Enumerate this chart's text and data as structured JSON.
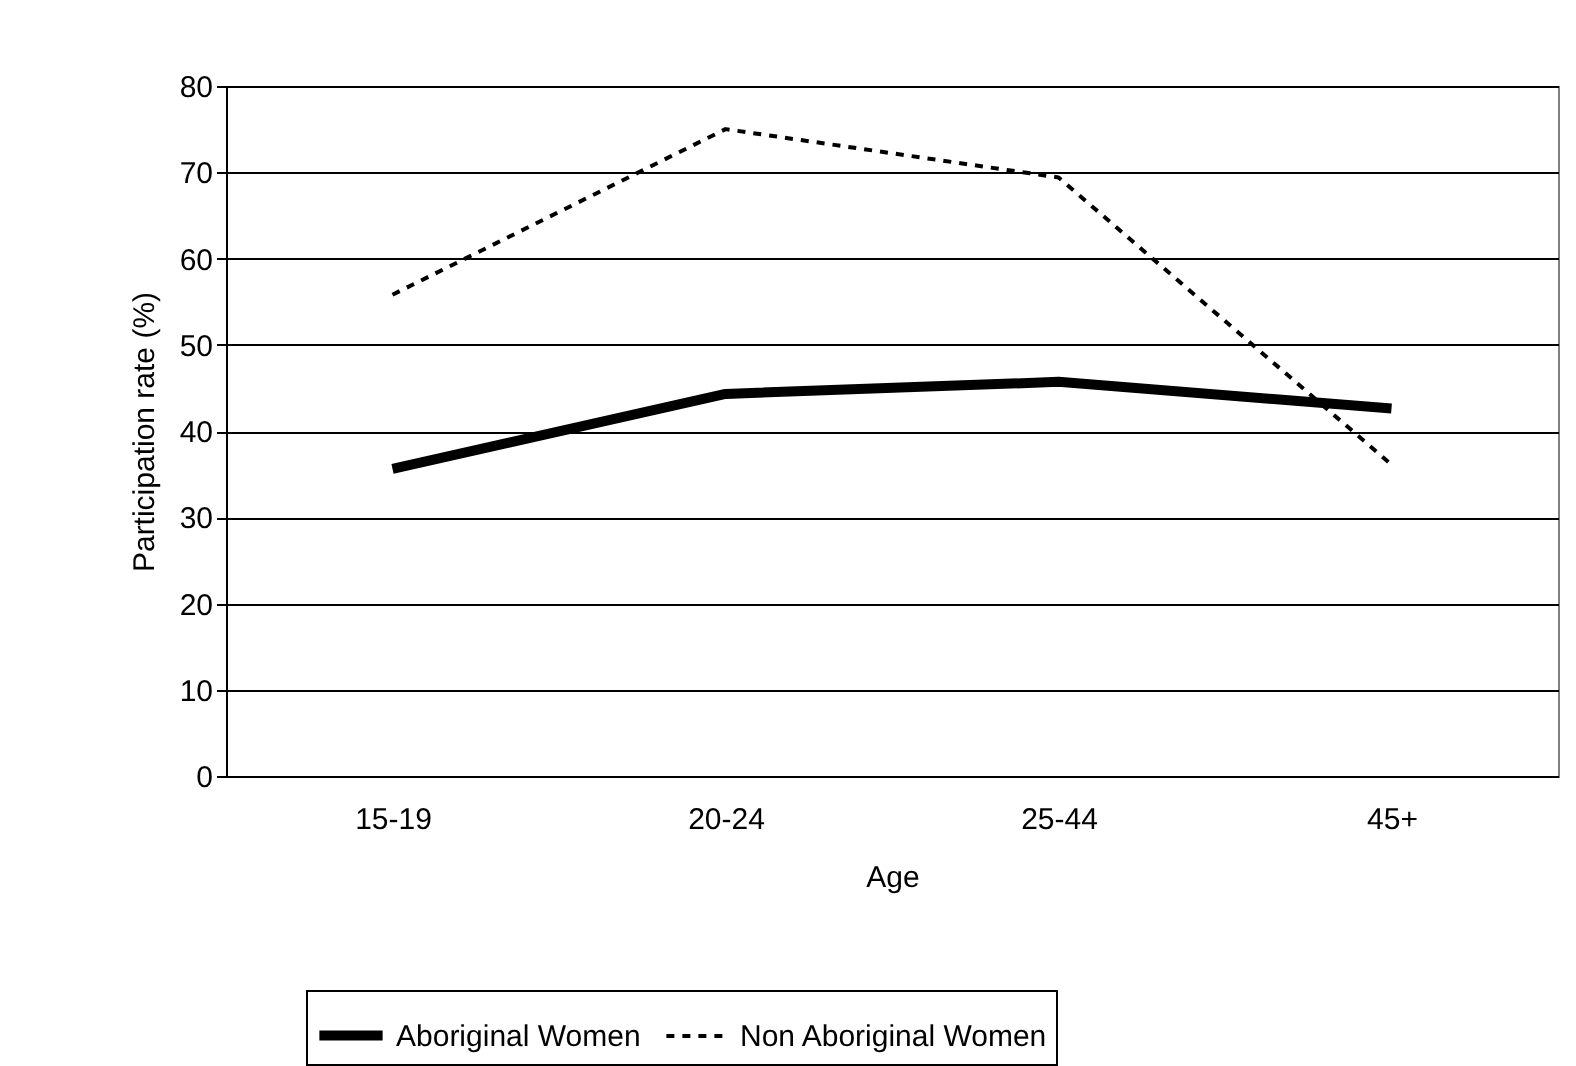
{
  "chart_data": {
    "type": "line",
    "xlabel": "Age",
    "ylabel": "Participation rate (%)",
    "categories": [
      "15-19",
      "20-24",
      "25-44",
      "45+"
    ],
    "series": [
      {
        "name": "Aboriginal Women",
        "color": "#000000",
        "line_style": "solid",
        "values": [
          35.6,
          44.3,
          45.7,
          42.6
        ]
      },
      {
        "name": "Non Aboriginal Women",
        "color": "#000000",
        "line_style": "dashed",
        "values": [
          55.8,
          75.0,
          69.4,
          36.1
        ]
      }
    ],
    "ylim": [
      0,
      80
    ],
    "yticks": [
      0,
      10,
      20,
      30,
      40,
      50,
      60,
      70,
      80
    ],
    "grid": "y",
    "legend": "bottom",
    "marker": "none"
  }
}
